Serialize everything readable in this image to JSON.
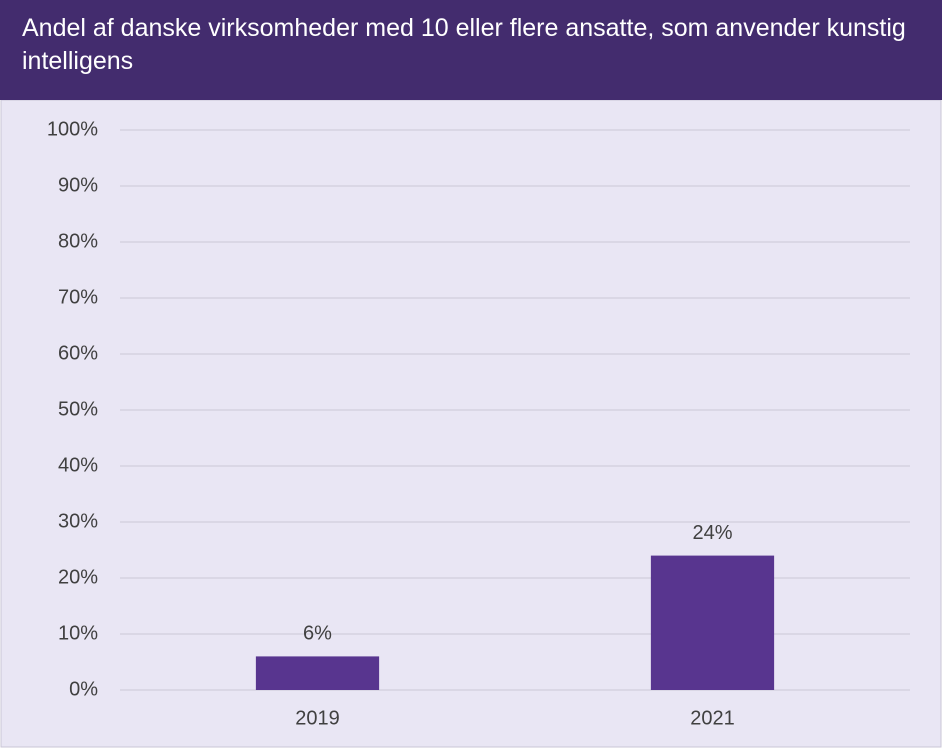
{
  "chart_data": {
    "type": "bar",
    "title": "Andel af danske virksomheder med 10 eller flere ansatte, som anvender kunstig intelligens",
    "categories": [
      "2019",
      "2021"
    ],
    "values": [
      6,
      24
    ],
    "value_labels": [
      "6%",
      "24%"
    ],
    "color": "#58358f",
    "ylim": [
      0,
      100
    ],
    "yticks": [
      {
        "value": 0,
        "label": "0%"
      },
      {
        "value": 10,
        "label": "10%"
      },
      {
        "value": 20,
        "label": "20%"
      },
      {
        "value": 30,
        "label": "30%"
      },
      {
        "value": 40,
        "label": "40%"
      },
      {
        "value": 50,
        "label": "50%"
      },
      {
        "value": 60,
        "label": "60%"
      },
      {
        "value": 70,
        "label": "70%"
      },
      {
        "value": 80,
        "label": "80%"
      },
      {
        "value": 90,
        "label": "90%"
      },
      {
        "value": 100,
        "label": "100%"
      }
    ],
    "grid": true
  }
}
